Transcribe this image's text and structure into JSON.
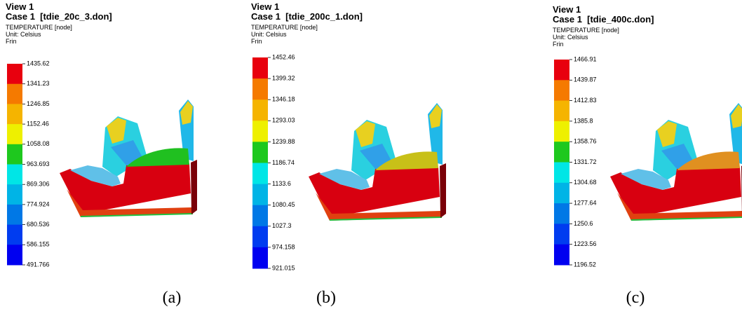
{
  "panels": [
    {
      "header": {
        "view": "View 1",
        "case": "Case 1  [tdie_20c_3.don]",
        "quantity": "TEMPERATURE [node]",
        "unit": "Unit: Celsius",
        "label": "Frin"
      },
      "legend": [
        1435.62,
        1341.23,
        1246.85,
        1152.46,
        1058.08,
        963.693,
        869.306,
        774.924,
        680.536,
        586.155,
        491.766
      ],
      "caption": "(a)"
    },
    {
      "header": {
        "view": "View 1",
        "case": "Case 1  [tdie_200c_1.don]",
        "quantity": "TEMPERATURE [node]",
        "unit": "Unit: Celsius",
        "label": "Frin"
      },
      "legend": [
        1452.46,
        1399.32,
        1346.18,
        1293.03,
        1239.88,
        1186.74,
        1133.6,
        1080.45,
        1027.3,
        974.158,
        921.015
      ],
      "caption": "(b)"
    },
    {
      "header": {
        "view": "View 1",
        "case": "Case 1  [tdie_400c.don]",
        "quantity": "TEMPERATURE [node]",
        "unit": "Unit: Celsius",
        "label": "Frin"
      },
      "legend": [
        1466.91,
        1439.87,
        1412.83,
        1385.8,
        1358.76,
        1331.72,
        1304.68,
        1277.64,
        1250.6,
        1223.56,
        1196.52
      ],
      "caption": "(c)"
    }
  ]
}
